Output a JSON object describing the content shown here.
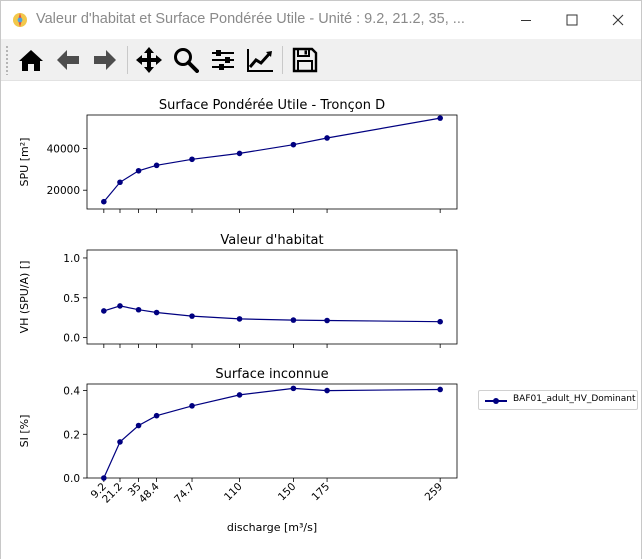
{
  "window": {
    "title": "Valeur d'habitat et Surface Pondérée Utile - Unité : 9.2, 21.2, 35, ...",
    "minimize_label": "—",
    "maximize_label": "☐",
    "close_label": "✕"
  },
  "toolbar": {
    "buttons": [
      {
        "name": "home",
        "icon": "home-icon"
      },
      {
        "name": "back",
        "icon": "arrow-left-icon"
      },
      {
        "name": "forward",
        "icon": "arrow-right-icon"
      },
      {
        "name": "pan",
        "icon": "move-icon"
      },
      {
        "name": "zoom",
        "icon": "search-icon"
      },
      {
        "name": "configure-subplots",
        "icon": "sliders-icon"
      },
      {
        "name": "edit-axis",
        "icon": "line-chart-icon"
      },
      {
        "name": "save",
        "icon": "floppy-icon"
      }
    ]
  },
  "chart_data": [
    {
      "type": "line",
      "title": "Surface Pondérée Utile - Tronçon D",
      "ylabel": "SPU [m²]",
      "x": [
        9.2,
        21.2,
        35,
        48.4,
        74.7,
        110,
        150,
        175,
        259
      ],
      "series": [
        {
          "name": "BAF01_adult_HV_Dominant",
          "values": [
            14500,
            23800,
            29300,
            31900,
            34800,
            37600,
            41800,
            45000,
            54500
          ]
        }
      ],
      "ylim": [
        11000,
        56000
      ],
      "yticks": [
        "20000",
        "40000"
      ],
      "color": "#000080"
    },
    {
      "type": "line",
      "title": "Valeur d'habitat",
      "ylabel": "VH (SPU/A) []",
      "x": [
        9.2,
        21.2,
        35,
        48.4,
        74.7,
        110,
        150,
        175,
        259
      ],
      "series": [
        {
          "name": "BAF01_adult_HV_Dominant",
          "values": [
            0.335,
            0.398,
            0.35,
            0.315,
            0.27,
            0.235,
            0.22,
            0.215,
            0.2
          ]
        }
      ],
      "ylim": [
        -0.08,
        1.1
      ],
      "yticks": [
        "0.0",
        "0.5",
        "1.0"
      ],
      "color": "#000080"
    },
    {
      "type": "line",
      "title": "Surface inconnue",
      "ylabel": "SI [%]",
      "xlabel": "discharge [m³/s]",
      "x": [
        9.2,
        21.2,
        35,
        48.4,
        74.7,
        110,
        150,
        175,
        259
      ],
      "xticklabels": [
        "9.2",
        "21.2",
        "35",
        "48.4",
        "74.7",
        "110",
        "150",
        "175",
        "259"
      ],
      "series": [
        {
          "name": "BAF01_adult_HV_Dominant",
          "values": [
            0.0,
            0.165,
            0.24,
            0.285,
            0.33,
            0.38,
            0.41,
            0.4,
            0.405
          ]
        }
      ],
      "ylim": [
        0,
        0.43
      ],
      "yticks": [
        "0.0",
        "0.2",
        "0.4"
      ],
      "color": "#000080"
    }
  ],
  "legend": {
    "label": "BAF01_adult_HV_Dominant",
    "placement": "right"
  }
}
